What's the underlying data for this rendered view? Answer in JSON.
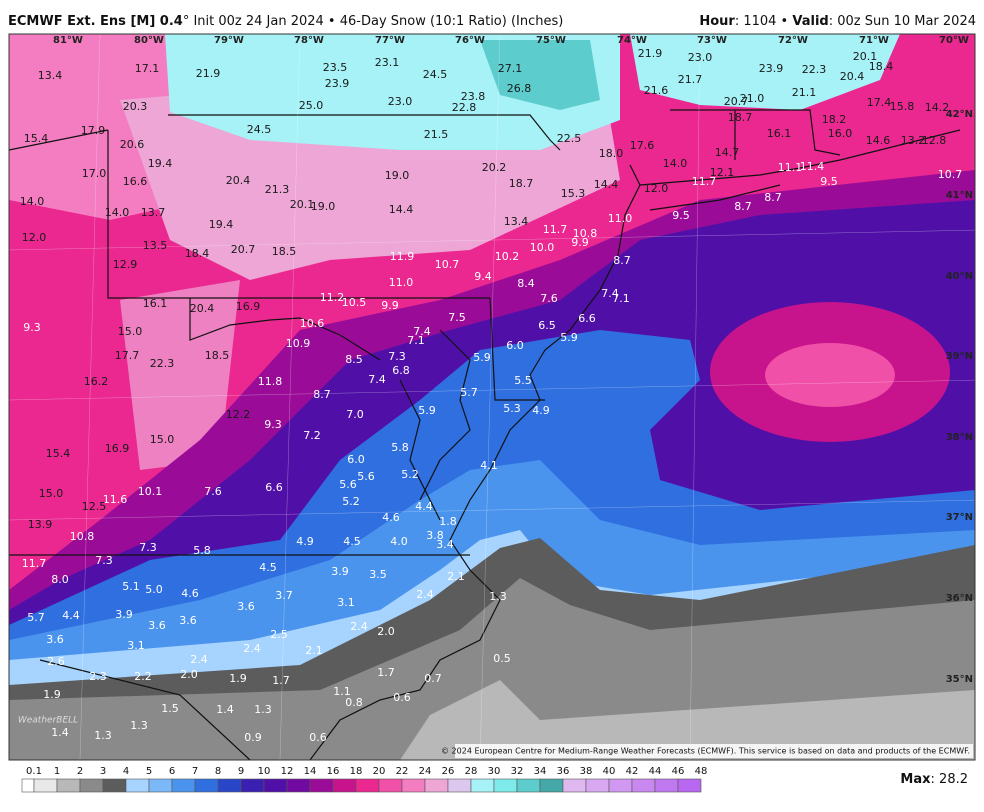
{
  "header": {
    "title": "ECMWF Ext. Ens [M] 0.4",
    "subtitle": "° Init 00z 24 Jan 2024 • 46-Day Snow (10:1 Ratio) (Inches)",
    "hour_label": "Hour",
    "hour": ": 1104 • ",
    "valid_label": "Valid",
    "valid": ": 00z Sun 10 Mar 2024"
  },
  "longitudes": [
    "81°W",
    "80°W",
    "79°W",
    "78°W",
    "77°W",
    "76°W",
    "75°W",
    "74°W",
    "73°W",
    "72°W",
    "71°W",
    "70°W"
  ],
  "latitudes": [
    "42°N",
    "41°N",
    "40°N",
    "39°N",
    "38°N",
    "37°N",
    "36°N",
    "35°N"
  ],
  "map_labels": [
    "13.4",
    "17.1",
    "21.9",
    "23.5",
    "23.1",
    "24.5",
    "27.1",
    "21.9",
    "23.0",
    "23.9",
    "22.3",
    "20.1",
    "18.4",
    "20.4",
    "23.9",
    "26.8",
    "21.7",
    "21.6",
    "21.1",
    "20.3",
    "25.0",
    "23.0",
    "23.8",
    "22.8",
    "20.7",
    "21.0",
    "17.4",
    "15.8",
    "14.2",
    "18.7",
    "18.2",
    "15.4",
    "17.9",
    "24.5",
    "21.5",
    "22.5",
    "16.1",
    "16.0",
    "14.6",
    "13.2",
    "12.8",
    "20.6",
    "18.0",
    "17.6",
    "14.7",
    "19.4",
    "20.2",
    "14.0",
    "12.1",
    "11.1",
    "11.4",
    "17.0",
    "16.6",
    "20.4",
    "19.0",
    "18.7",
    "14.4",
    "12.0",
    "11.7",
    "9.5",
    "10.7",
    "14.0",
    "21.3",
    "20.1",
    "19.0",
    "14.4",
    "15.3",
    "8.7",
    "8.7",
    "9.5",
    "14.0",
    "13.7",
    "13.4",
    "11.0",
    "12.0",
    "19.4",
    "11.7",
    "10.8",
    "13.5",
    "20.7",
    "18.5",
    "18.4",
    "10.0",
    "9.9",
    "12.9",
    "11.9",
    "10.7",
    "10.2",
    "8.7",
    "11.0",
    "9.4",
    "8.4",
    "16.1",
    "20.4",
    "16.9",
    "11.2",
    "10.5",
    "9.9",
    "7.6",
    "7.4",
    "7.1",
    "9.3",
    "10.6",
    "7.5",
    "6.5",
    "6.6",
    "15.0",
    "7.4",
    "7.1",
    "5.9",
    "6.0",
    "10.9",
    "17.7",
    "22.3",
    "18.5",
    "8.5",
    "7.3",
    "5.9",
    "6.8",
    "16.2",
    "11.8",
    "7.4",
    "5.5",
    "8.7",
    "5.7",
    "12.2",
    "7.0",
    "5.9",
    "5.3",
    "4.9",
    "9.3",
    "7.2",
    "15.0",
    "15.4",
    "16.9",
    "5.8",
    "6.0",
    "4.1",
    "5.6",
    "5.2",
    "5.6",
    "7.6",
    "6.6",
    "15.0",
    "10.1",
    "11.6",
    "12.5",
    "5.2",
    "4.4",
    "4.6",
    "1.8",
    "13.9",
    "10.8",
    "3.8",
    "4.9",
    "4.5",
    "4.0",
    "3.4",
    "7.3",
    "5.8",
    "11.7",
    "7.3",
    "4.5",
    "3.9",
    "3.5",
    "2.1",
    "8.0",
    "5.1",
    "5.0",
    "4.6",
    "3.7",
    "2.4",
    "1.3",
    "3.6",
    "3.1",
    "5.7",
    "4.4",
    "3.9",
    "3.6",
    "3.6",
    "2.4",
    "2.0",
    "3.6",
    "3.1",
    "2.5",
    "2.4",
    "2.1",
    "2.4",
    "2.6",
    "0.5",
    "1.7",
    "2.3",
    "2.2",
    "2.0",
    "1.9",
    "1.7",
    "0.7",
    "1.9",
    "1.1",
    "0.6",
    "0.8",
    "1.5",
    "1.4",
    "1.3",
    "1.4",
    "1.3",
    "1.3",
    "0.9",
    "0.6"
  ],
  "logo": "WeatherBELL",
  "copyright": "© 2024 European Centre for Medium-Range Weather Forecasts (ECMWF). This service is based on data and products of the ECMWF.",
  "colorbar": {
    "ticks": [
      0.1,
      1,
      2,
      3,
      4,
      5,
      6,
      7,
      8,
      9,
      10,
      12,
      14,
      16,
      18,
      20,
      22,
      24,
      26,
      28,
      30,
      32,
      34,
      36,
      38,
      40,
      42,
      44,
      46,
      48
    ],
    "colors": [
      "#e8e8e8",
      "#b8b8b8",
      "#8a8a8a",
      "#5c5c5c",
      "#a6d4ff",
      "#7ab8f8",
      "#4a94ee",
      "#2f6fe0",
      "#2a46c8",
      "#3a20b0",
      "#5010a8",
      "#700aa0",
      "#9a0c98",
      "#c8148c",
      "#ea2890",
      "#f050a8",
      "#f47cc0",
      "#eea6d6",
      "#dcc8ee",
      "#a6f2f6",
      "#7eeaea",
      "#5ccccc",
      "#44a8a8",
      "#e0b8f0",
      "#d8a8f0",
      "#d098f0",
      "#c888f0",
      "#c078f0",
      "#b868f0"
    ]
  },
  "max": {
    "label": "Max",
    "value": ": 28.2"
  }
}
